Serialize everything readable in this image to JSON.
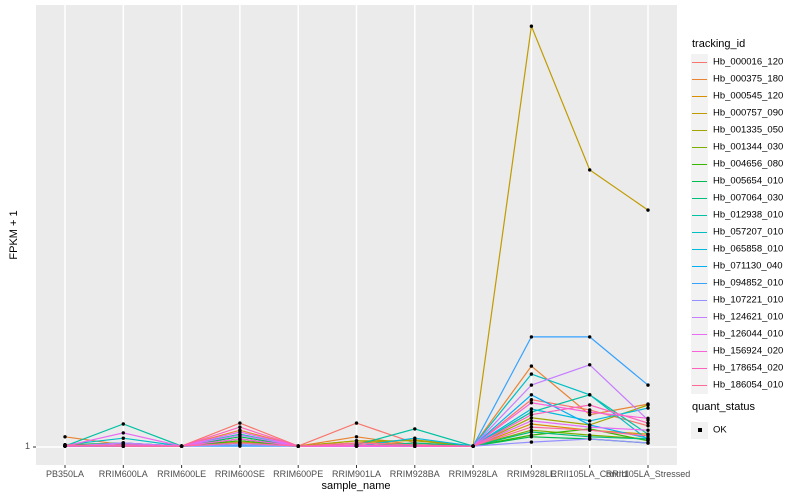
{
  "figure": {
    "background": "#FFFFFF",
    "panel_background": "#EBEBEB",
    "grid_color": "#FFFFFF",
    "point_color": "#000000",
    "tick_color": "#333333",
    "tick_text_color": "#4D4D4D"
  },
  "axes": {
    "x_label": "sample_name",
    "y_label": "FPKM + 1",
    "y_ticks": [
      "1"
    ]
  },
  "legend": {
    "tracking_title": "tracking_id",
    "quant_title": "quant_status",
    "quant_items": [
      {
        "label": "OK",
        "marker": "black-point"
      }
    ],
    "key_background": "#F2F2F2"
  },
  "chart_data": {
    "type": "line",
    "title": "",
    "xlabel": "sample_name",
    "ylabel": "FPKM + 1",
    "y_scale": "log",
    "y_visible_ticks": [
      1
    ],
    "grid": "white vertical gridline per category; white horizontal gridline at y = 1",
    "legend_position": "right",
    "points": "black dot (quant_status OK) at every observation",
    "value_encoding": "values are fractions of panel height above the y=1 baseline (log-scale positions read from the plot; 0 means FPKM+1 at baseline 1, 1 means panel top)",
    "categories": [
      "PB350LA",
      "RRIM600LA",
      "RRIM600LE",
      "RRIM600SE",
      "RRIM600PE",
      "RRIM901LA",
      "RRIM928BA",
      "RRIM928LA",
      "RRIM928LE",
      "RRII105LA_Control",
      "RRII105LA_Stressed"
    ],
    "series": [
      {
        "name": "Hb_000016_120",
        "color": "#F8766D",
        "values": [
          0.005,
          0.009,
          0.002,
          0.054,
          0.002,
          0.054,
          0.009,
          0.002,
          0.107,
          0.084,
          0.048
        ]
      },
      {
        "name": "Hb_000375_180",
        "color": "#EA8331",
        "values": [
          0.023,
          0.005,
          0.002,
          0.038,
          0.002,
          0.023,
          0.005,
          0.002,
          0.183,
          0.073,
          0.097
        ]
      },
      {
        "name": "Hb_000545_120",
        "color": "#D89000",
        "values": [
          0.002,
          0.002,
          0.002,
          0.011,
          0.002,
          0.014,
          0.005,
          0.002,
          0.052,
          0.038,
          0.029
        ]
      },
      {
        "name": "Hb_000757_090",
        "color": "#C09B00",
        "values": [
          0.002,
          0.005,
          0.002,
          0.018,
          0.002,
          0.009,
          0.016,
          0.002,
          0.952,
          0.627,
          0.536
        ]
      },
      {
        "name": "Hb_001335_050",
        "color": "#A3A500",
        "values": [
          0.002,
          0.002,
          0.002,
          0.009,
          0.002,
          0.014,
          0.014,
          0.002,
          0.066,
          0.05,
          0.095
        ]
      },
      {
        "name": "Hb_001344_030",
        "color": "#7CAE00",
        "values": [
          0.002,
          0.005,
          0.002,
          0.018,
          0.002,
          0.005,
          0.002,
          0.002,
          0.038,
          0.027,
          0.018
        ]
      },
      {
        "name": "Hb_004656_080",
        "color": "#39B600",
        "values": [
          0.002,
          0.002,
          0.002,
          0.014,
          0.002,
          0.002,
          0.005,
          0.002,
          0.027,
          0.041,
          0.014
        ]
      },
      {
        "name": "Hb_005654_010",
        "color": "#00BB4E",
        "values": [
          0.005,
          0.009,
          0.002,
          0.023,
          0.002,
          0.005,
          0.002,
          0.002,
          0.023,
          0.018,
          0.009
        ]
      },
      {
        "name": "Hb_007064_030",
        "color": "#00BF7D",
        "values": [
          0.002,
          0.005,
          0.002,
          0.018,
          0.002,
          0.002,
          0.009,
          0.002,
          0.034,
          0.023,
          0.018
        ]
      },
      {
        "name": "Hb_012938_010",
        "color": "#00C1A3",
        "values": [
          0.002,
          0.052,
          0.002,
          0.029,
          0.002,
          0.005,
          0.041,
          0.002,
          0.079,
          0.118,
          0.029
        ]
      },
      {
        "name": "Hb_057207_010",
        "color": "#00BFC4",
        "values": [
          0.005,
          0.02,
          0.002,
          0.009,
          0.002,
          0.002,
          0.005,
          0.002,
          0.165,
          0.118,
          0.016
        ]
      },
      {
        "name": "Hb_065858_010",
        "color": "#00BADE",
        "values": [
          0.002,
          0.009,
          0.002,
          0.005,
          0.002,
          0.002,
          0.02,
          0.002,
          0.086,
          0.059,
          0.088
        ]
      },
      {
        "name": "Hb_071130_040",
        "color": "#00B0F6",
        "values": [
          0.002,
          0.002,
          0.002,
          0.005,
          0.002,
          0.002,
          0.002,
          0.002,
          0.118,
          0.05,
          0.02
        ]
      },
      {
        "name": "Hb_094852_010",
        "color": "#35A2FF",
        "values": [
          0.002,
          0.002,
          0.002,
          0.002,
          0.002,
          0.002,
          0.002,
          0.002,
          0.249,
          0.249,
          0.14
        ]
      },
      {
        "name": "Hb_107221_010",
        "color": "#9590FF",
        "values": [
          0.002,
          0.002,
          0.002,
          0.005,
          0.002,
          0.002,
          0.002,
          0.002,
          0.011,
          0.018,
          0.009
        ]
      },
      {
        "name": "Hb_124621_010",
        "color": "#C77CFF",
        "values": [
          0.002,
          0.009,
          0.002,
          0.027,
          0.002,
          0.002,
          0.002,
          0.002,
          0.14,
          0.186,
          0.061
        ]
      },
      {
        "name": "Hb_126044_010",
        "color": "#E76BF3",
        "values": [
          0.002,
          0.032,
          0.002,
          0.034,
          0.002,
          0.002,
          0.002,
          0.002,
          0.059,
          0.045,
          0.038
        ]
      },
      {
        "name": "Hb_156924_020",
        "color": "#FA62DB",
        "values": [
          0.002,
          0.005,
          0.002,
          0.018,
          0.002,
          0.002,
          0.002,
          0.002,
          0.1,
          0.079,
          0.065
        ]
      },
      {
        "name": "Hb_178654_020",
        "color": "#FF62BC",
        "values": [
          0.002,
          0.002,
          0.002,
          0.045,
          0.002,
          0.005,
          0.002,
          0.002,
          0.073,
          0.095,
          0.054
        ]
      },
      {
        "name": "Hb_186054_010",
        "color": "#FF6A98",
        "values": [
          0.005,
          0.002,
          0.002,
          0.009,
          0.002,
          0.009,
          0.005,
          0.002,
          0.045,
          0.038,
          0.025
        ]
      }
    ]
  }
}
